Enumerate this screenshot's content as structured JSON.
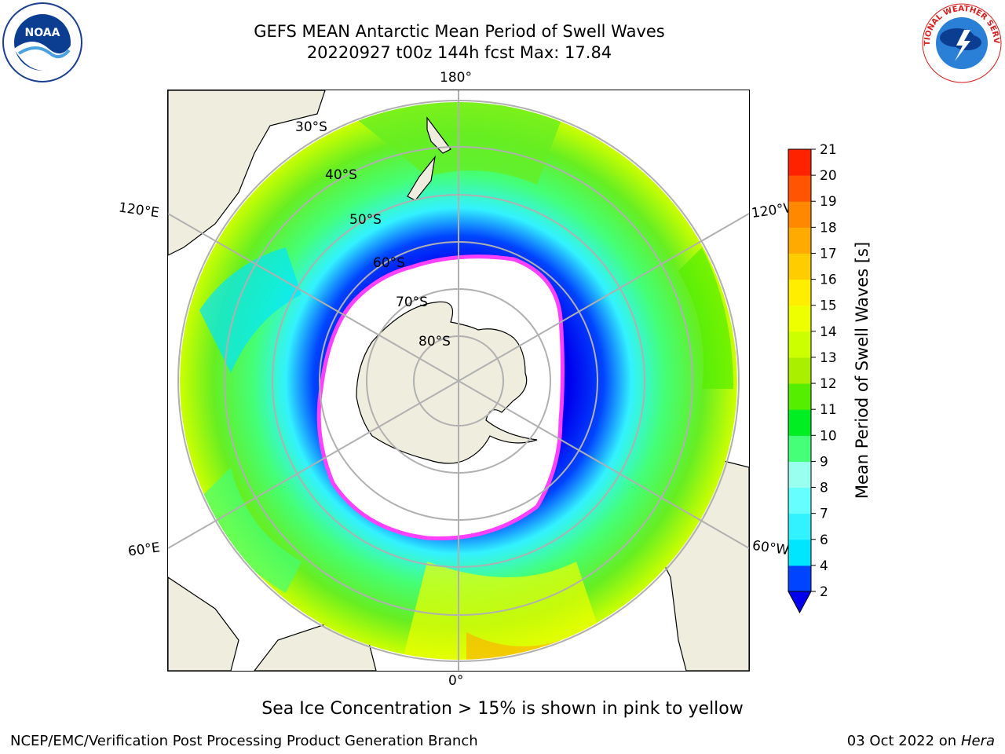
{
  "header": {
    "title_line1": "GEFS MEAN Antarctic Mean Period of Swell Waves",
    "title_line2": "20220927 t00z 144h fcst   Max: 17.84"
  },
  "logos": {
    "left": {
      "icon": "noaa-logo",
      "text": "NOAA",
      "ring_text": "NATIONAL OCEANIC AND ATMOSPHERIC ADMINISTRATION · U.S. DEPARTMENT OF COMMERCE"
    },
    "right": {
      "icon": "nws-logo",
      "ring_text": "NATIONAL WEATHER SERVICE"
    }
  },
  "map": {
    "projection": "south-polar-stereographic",
    "lon_labels": {
      "top": "180°",
      "bottom": "0°",
      "left_upper": "120°E",
      "left_lower": "60°E",
      "right_upper": "120°W",
      "right_lower": "60°W"
    },
    "lat_labels": [
      "30°S",
      "40°S",
      "50°S",
      "60°S",
      "70°S",
      "80°S"
    ],
    "colors": {
      "land": "#efedde",
      "sea_ice": "#ffffff",
      "gridline": "#b0b0b0",
      "ice_edge": "#ff40ff"
    }
  },
  "colorbar": {
    "label": "Mean Period of Swell Waves [s]",
    "ticks": [
      "2",
      "4",
      "6",
      "7",
      "8",
      "9",
      "10",
      "11",
      "12",
      "13",
      "14",
      "15",
      "16",
      "17",
      "18",
      "19",
      "20",
      "21"
    ],
    "colors": [
      "#0044ff",
      "#00e6ff",
      "#33f2ff",
      "#66ffff",
      "#99ffee",
      "#44ff77",
      "#00ee22",
      "#55ee00",
      "#aaee00",
      "#ccff00",
      "#eeff00",
      "#ffee00",
      "#ffcc00",
      "#ffaa00",
      "#ff8800",
      "#ff5500",
      "#ff2200"
    ],
    "under_color": "#0000ee",
    "range": [
      2,
      21
    ]
  },
  "footer": {
    "note": "Sea Ice Concentration > 15% is shown in pink to yellow",
    "credit_left": "NCEP/EMC/Verification Post Processing Product Generation Branch",
    "credit_date": "03 Oct 2022 on",
    "credit_host": "Hera"
  }
}
